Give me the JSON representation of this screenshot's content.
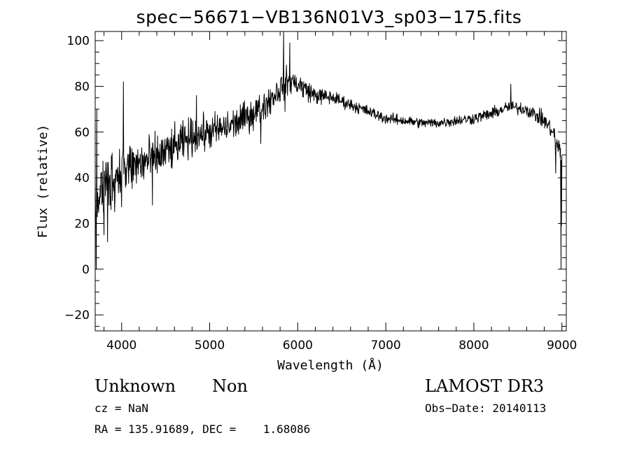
{
  "chart_data": {
    "type": "line",
    "title": "spec−56671−VB136N01V3_sp03−175.fits",
    "xlabel": "Wavelength (Å)",
    "ylabel": "Flux (relative)",
    "xlim": [
      3700,
      9050
    ],
    "ylim": [
      -27,
      104
    ],
    "xticks": [
      4000,
      5000,
      6000,
      7000,
      8000,
      9000
    ],
    "yticks": [
      -20,
      0,
      20,
      40,
      60,
      80,
      100
    ],
    "xtick_labels": [
      "4000",
      "5000",
      "6000",
      "7000",
      "8000",
      "9000"
    ],
    "ytick_labels": [
      "−20",
      "0",
      "20",
      "40",
      "60",
      "80",
      "100"
    ],
    "series": [
      {
        "name": "spectrum",
        "continuum_x": [
          3700,
          3750,
          3850,
          4000,
          4200,
          4400,
          4600,
          4800,
          5000,
          5200,
          5400,
          5600,
          5800,
          5900,
          6000,
          6200,
          6400,
          6600,
          6800,
          7000,
          7200,
          7400,
          7600,
          7800,
          8000,
          8200,
          8400,
          8600,
          8800,
          8900,
          8950,
          9000
        ],
        "continuum_y": [
          28,
          34,
          38,
          43,
          46,
          49,
          53,
          58,
          60,
          62,
          66,
          71,
          79,
          83,
          81,
          76,
          75,
          72,
          69,
          66,
          65,
          64,
          64,
          65,
          66,
          68,
          71,
          70,
          65,
          60,
          54,
          50
        ],
        "noise_x": [
          3700,
          3900,
          4100,
          4400,
          4700,
          5000,
          5400,
          5800,
          6000,
          6200,
          6500,
          7000,
          7500,
          8000,
          8500,
          8900,
          9000
        ],
        "noise_amp": [
          15,
          13,
          11,
          9,
          8,
          7,
          6.5,
          6,
          5,
          3.5,
          2.5,
          2.2,
          2.0,
          2.3,
          2.5,
          3.5,
          5
        ],
        "spikes": [
          {
            "x": 3712,
            "y": 0
          },
          {
            "x": 3718,
            "y": 70
          },
          {
            "x": 3800,
            "y": 15
          },
          {
            "x": 3840,
            "y": 12
          },
          {
            "x": 4020,
            "y": 82
          },
          {
            "x": 4350,
            "y": 28
          },
          {
            "x": 4850,
            "y": 76
          },
          {
            "x": 5580,
            "y": 55
          },
          {
            "x": 5840,
            "y": 104
          },
          {
            "x": 5910,
            "y": 99
          },
          {
            "x": 5855,
            "y": 69
          },
          {
            "x": 8420,
            "y": 81
          },
          {
            "x": 8930,
            "y": 42
          },
          {
            "x": 8990,
            "y": 0
          },
          {
            "x": 8995,
            "y": 19
          }
        ]
      }
    ]
  },
  "info": {
    "object_class": "Unknown",
    "object_subclass": "Non",
    "survey": "LAMOST DR3",
    "cz": "cz = NaN",
    "obs_date": "Obs−Date: 20140113",
    "radec": "RA = 135.91689, DEC =    1.68086"
  }
}
